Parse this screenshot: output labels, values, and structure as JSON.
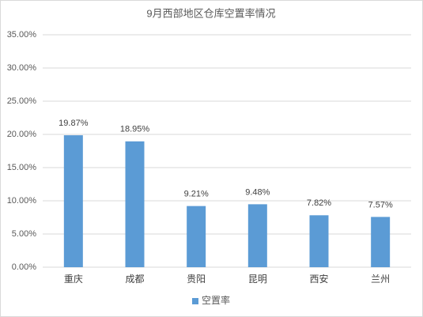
{
  "chart_data": {
    "type": "bar",
    "title": "9月西部地区仓库空置率情况",
    "categories": [
      "重庆",
      "成都",
      "贵阳",
      "昆明",
      "西安",
      "兰州"
    ],
    "series": [
      {
        "name": "空置率",
        "color": "#5b9bd5",
        "values": [
          19.87,
          18.95,
          9.21,
          9.48,
          7.82,
          7.57
        ],
        "value_labels": [
          "19.87%",
          "18.95%",
          "9.21%",
          "9.48%",
          "7.82%",
          "7.57%"
        ]
      }
    ],
    "ylim": [
      0,
      35
    ],
    "yticks": [
      {
        "value": 0,
        "label": "0.00%"
      },
      {
        "value": 5,
        "label": "5.00%"
      },
      {
        "value": 10,
        "label": "10.00%"
      },
      {
        "value": 15,
        "label": "15.00%"
      },
      {
        "value": 20,
        "label": "20.00%"
      },
      {
        "value": 25,
        "label": "25.00%"
      },
      {
        "value": 30,
        "label": "30.00%"
      },
      {
        "value": 35,
        "label": "35.00%"
      }
    ],
    "grid": true,
    "legend": "bottom"
  }
}
